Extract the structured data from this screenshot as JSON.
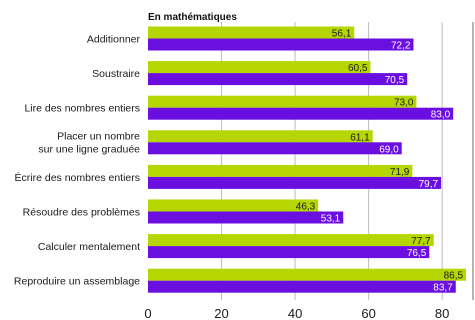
{
  "chart_data": {
    "type": "bar",
    "orientation": "horizontal",
    "title": "En mathématiques",
    "categories": [
      [
        "Additionner"
      ],
      [
        "Soustraire"
      ],
      [
        "Lire des nombres entiers"
      ],
      [
        "Placer un nombre",
        "sur une ligne graduée"
      ],
      [
        "Écrire des nombres entiers"
      ],
      [
        "Résoudre des problèmes"
      ],
      [
        "Calculer mentalement"
      ],
      [
        "Reproduire un assemblage"
      ]
    ],
    "series": [
      {
        "color": "#b5d600",
        "label_color": "#1a1a1a",
        "values": [
          56.1,
          60.5,
          73.0,
          61.1,
          71.9,
          46.3,
          77.7,
          86.5
        ],
        "value_labels": [
          "56,1",
          "60,5",
          "73,0",
          "61,1",
          "71,9",
          "46,3",
          "77,7",
          "86,5"
        ]
      },
      {
        "color": "#6a0fe0",
        "label_color": "#ffffff",
        "values": [
          72.2,
          70.5,
          83.0,
          69.0,
          79.7,
          53.1,
          76.5,
          83.7
        ],
        "value_labels": [
          "72,2",
          "70,5",
          "83,0",
          "69,0",
          "79,7",
          "53,1",
          "76,5",
          "83,7"
        ]
      }
    ],
    "xlim": [
      0,
      90
    ],
    "xticks": [
      0,
      20,
      40,
      60,
      80
    ],
    "grid": true
  }
}
